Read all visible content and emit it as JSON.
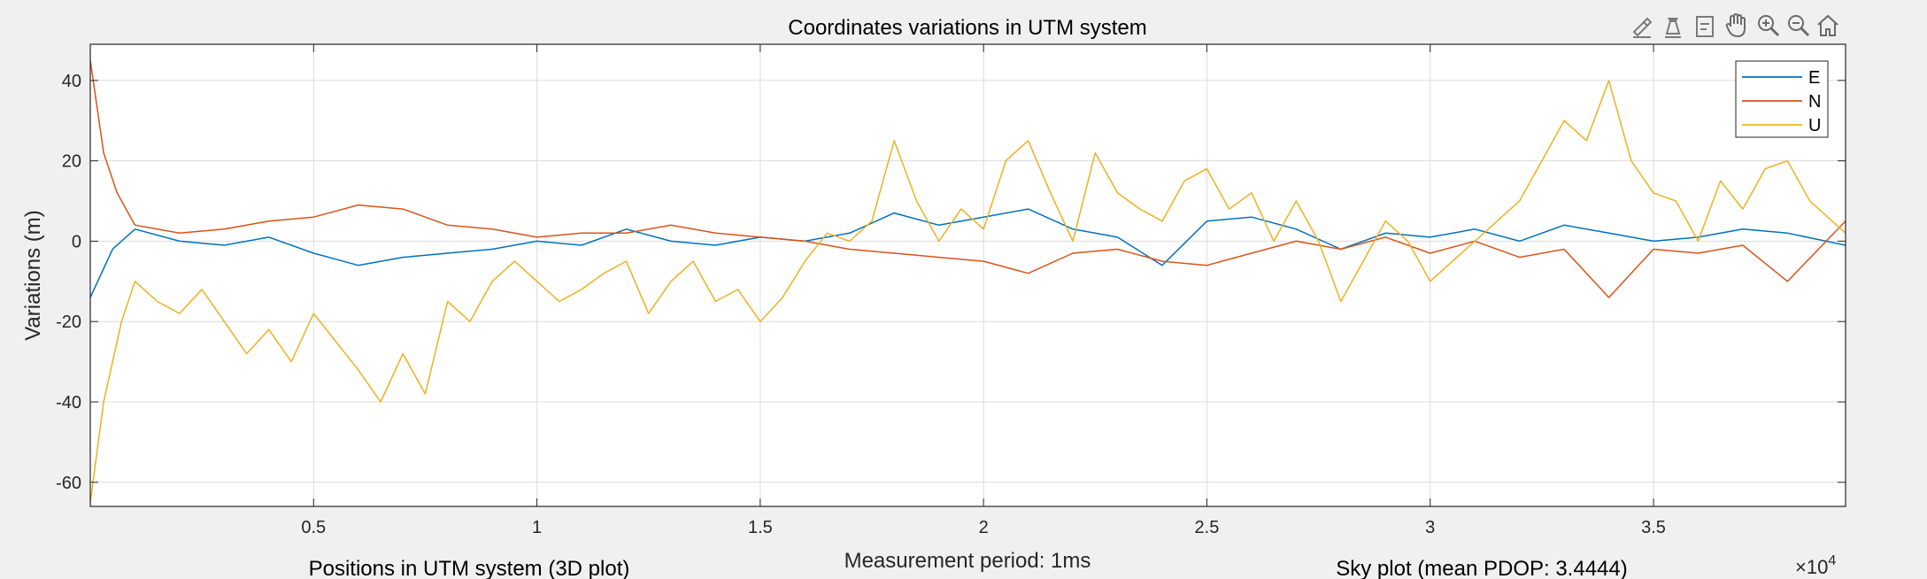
{
  "chart_data": {
    "type": "line",
    "title": "Coordinates variations in UTM system",
    "xlabel": "Measurement period: 1ms",
    "ylabel": "Variations (m)",
    "xlim": [
      0,
      39300
    ],
    "ylim": [
      -66,
      49
    ],
    "x_ticks": [
      5000,
      10000,
      15000,
      20000,
      25000,
      30000,
      35000
    ],
    "x_tick_labels": [
      "0.5",
      "1",
      "1.5",
      "2",
      "2.5",
      "3",
      "3.5"
    ],
    "x_exponent_base": "×10",
    "x_exponent_power": "4",
    "y_ticks": [
      40,
      20,
      0,
      -20,
      -40,
      -60
    ],
    "y_tick_labels": [
      "40",
      "20",
      "0",
      "-20",
      "-40",
      "-60"
    ],
    "grid": true,
    "legend_position": "top-right",
    "series": [
      {
        "name": "E",
        "color": "#0072BD",
        "x": [
          0,
          500,
          1000,
          2000,
          3000,
          4000,
          5000,
          6000,
          7000,
          8000,
          9000,
          10000,
          11000,
          12000,
          13000,
          14000,
          15000,
          16000,
          17000,
          18000,
          19000,
          20000,
          21000,
          22000,
          23000,
          24000,
          25000,
          26000,
          27000,
          28000,
          29000,
          30000,
          31000,
          32000,
          33000,
          34000,
          35000,
          36000,
          37000,
          38000,
          39300
        ],
        "values": [
          -14,
          -2,
          3,
          0,
          -1,
          1,
          -3,
          -6,
          -4,
          -3,
          -2,
          0,
          -1,
          3,
          0,
          -1,
          1,
          0,
          2,
          7,
          4,
          6,
          8,
          3,
          1,
          -6,
          5,
          6,
          3,
          -2,
          2,
          1,
          3,
          0,
          4,
          2,
          0,
          1,
          3,
          2,
          -1
        ]
      },
      {
        "name": "N",
        "color": "#D95319",
        "x": [
          0,
          300,
          600,
          1000,
          2000,
          3000,
          4000,
          5000,
          6000,
          7000,
          8000,
          9000,
          10000,
          11000,
          12000,
          13000,
          14000,
          15000,
          16000,
          17000,
          18000,
          19000,
          20000,
          21000,
          22000,
          23000,
          24000,
          25000,
          26000,
          27000,
          28000,
          29000,
          30000,
          31000,
          32000,
          33000,
          34000,
          35000,
          36000,
          37000,
          38000,
          39300
        ],
        "values": [
          45,
          22,
          12,
          4,
          2,
          3,
          5,
          6,
          9,
          8,
          4,
          3,
          1,
          2,
          2,
          4,
          2,
          1,
          0,
          -2,
          -3,
          -4,
          -5,
          -8,
          -3,
          -2,
          -5,
          -6,
          -3,
          0,
          -2,
          1,
          -3,
          0,
          -4,
          -2,
          -14,
          -2,
          -3,
          -1,
          -10,
          5
        ]
      },
      {
        "name": "U",
        "color": "#EDB120",
        "x": [
          0,
          300,
          700,
          1000,
          1500,
          2000,
          2500,
          3000,
          3500,
          4000,
          4500,
          5000,
          5500,
          6000,
          6500,
          7000,
          7500,
          8000,
          8500,
          9000,
          9500,
          10000,
          10500,
          11000,
          11500,
          12000,
          12500,
          13000,
          13500,
          14000,
          14500,
          15000,
          15500,
          16000,
          16500,
          17000,
          17500,
          18000,
          18500,
          19000,
          19500,
          20000,
          20500,
          21000,
          21500,
          22000,
          22500,
          23000,
          23500,
          24000,
          24500,
          25000,
          25500,
          26000,
          26500,
          27000,
          27500,
          28000,
          28500,
          29000,
          29500,
          30000,
          30500,
          31000,
          31500,
          32000,
          32500,
          33000,
          33500,
          34000,
          34500,
          35000,
          35500,
          36000,
          36500,
          37000,
          37500,
          38000,
          38500,
          39300
        ],
        "values": [
          -65,
          -40,
          -20,
          -10,
          -15,
          -18,
          -12,
          -20,
          -28,
          -22,
          -30,
          -18,
          -25,
          -32,
          -40,
          -28,
          -38,
          -15,
          -20,
          -10,
          -5,
          -10,
          -15,
          -12,
          -8,
          -5,
          -18,
          -10,
          -5,
          -15,
          -12,
          -20,
          -14,
          -5,
          2,
          0,
          5,
          25,
          10,
          0,
          8,
          3,
          20,
          25,
          12,
          0,
          22,
          12,
          8,
          5,
          15,
          18,
          8,
          12,
          0,
          10,
          0,
          -15,
          -5,
          5,
          0,
          -10,
          -5,
          0,
          5,
          10,
          20,
          30,
          25,
          40,
          20,
          12,
          10,
          0,
          15,
          8,
          18,
          20,
          10,
          2
        ]
      }
    ]
  },
  "panel_labels": {
    "left": "Positions in UTM system (3D plot)",
    "right": "Sky plot (mean PDOP: 3.4444)"
  },
  "toolbar": {
    "icons": [
      "brush-icon",
      "data-cursor-icon",
      "data-tips-icon",
      "pan-icon",
      "zoom-in-icon",
      "zoom-out-icon",
      "home-icon"
    ]
  }
}
